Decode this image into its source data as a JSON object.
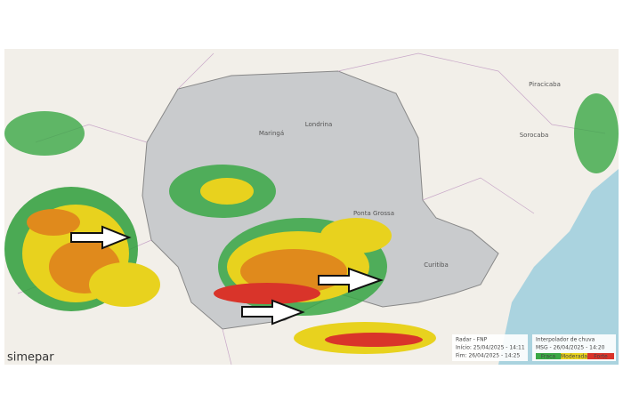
{
  "logo": "simepar",
  "cities": [
    "Maringá",
    "Londrina",
    "Curitiba",
    "Ponta Grossa",
    "Sorocaba",
    "Piracicaba"
  ],
  "legend": {
    "radar": "Radar - FNP",
    "start": "Início: 25/04/2025 - 14:11",
    "end": "Fim: 26/04/2025 - 14:25",
    "interp": "Interpolador de chuva",
    "msg": "MSG - 26/04/2025 - 14:20",
    "scale": [
      "Fraca",
      "Moderada",
      "Forte"
    ]
  }
}
